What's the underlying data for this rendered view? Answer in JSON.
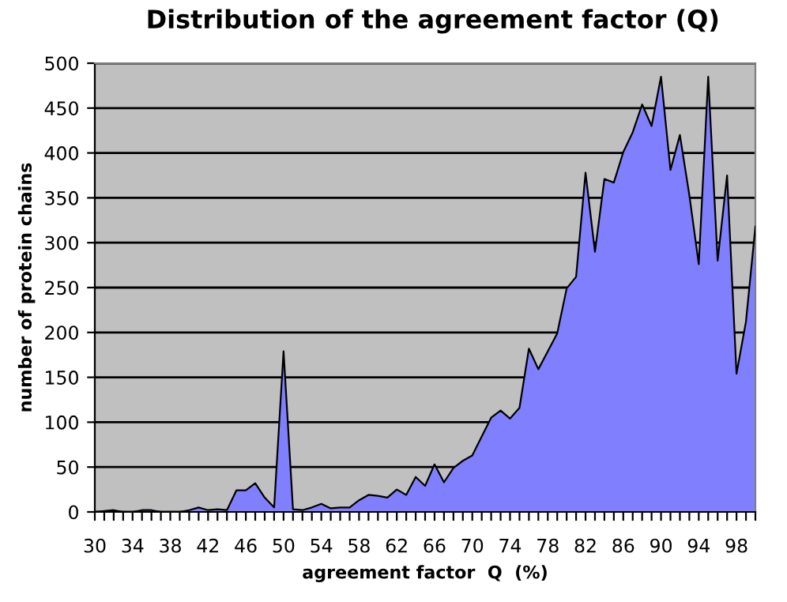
{
  "chart_data": {
    "type": "area",
    "title": "Distribution of the agreement factor (Q)",
    "xlabel": "agreement factor  Q  (%)",
    "ylabel": "number of protein chains",
    "categories": [
      "30",
      null,
      null,
      null,
      "34",
      null,
      null,
      null,
      "38",
      null,
      null,
      null,
      "42",
      null,
      null,
      null,
      "46",
      null,
      null,
      null,
      "50",
      null,
      null,
      null,
      "54",
      null,
      null,
      null,
      "58",
      null,
      null,
      null,
      "62",
      null,
      null,
      null,
      "66",
      null,
      null,
      null,
      "70",
      null,
      null,
      null,
      "74",
      null,
      null,
      null,
      "78",
      null,
      null,
      null,
      "82",
      null,
      null,
      null,
      "86",
      null,
      null,
      null,
      "90",
      null,
      null,
      null,
      "94",
      null,
      null,
      null,
      "98",
      null,
      null
    ],
    "series": [
      {
        "color": "#8080ff",
        "values": [
          0,
          1,
          2,
          0,
          0,
          2,
          2,
          0,
          0,
          0,
          2,
          5,
          2,
          3,
          2,
          24,
          24,
          32,
          16,
          5,
          179,
          3,
          2,
          5,
          9,
          4,
          5,
          5,
          13,
          19,
          18,
          16,
          25,
          19,
          39,
          29,
          53,
          33,
          49,
          57,
          63,
          84,
          105,
          113,
          104,
          116,
          182,
          159,
          179,
          199,
          249,
          262,
          378,
          290,
          371,
          367,
          401,
          423,
          454,
          430,
          485,
          381,
          420,
          353,
          276,
          485,
          280,
          375,
          154,
          212,
          318
        ]
      }
    ],
    "ylim": [
      0,
      500
    ],
    "yticks": [
      0,
      50,
      100,
      150,
      200,
      250,
      300,
      350,
      400,
      450,
      500
    ],
    "grid": "y",
    "legend": false
  }
}
